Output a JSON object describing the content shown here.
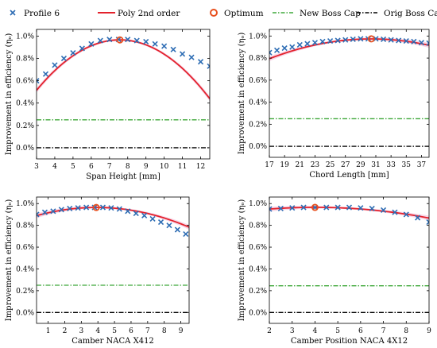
{
  "legend": {
    "placement": "top",
    "items": [
      {
        "label": "Profile 6",
        "marker": "x",
        "color": "#2e6db4"
      },
      {
        "label": "Poly 2nd order",
        "marker": "line",
        "color": "#e3222c"
      },
      {
        "label": "Optimum",
        "marker": "circle",
        "color": "#e8501e"
      },
      {
        "label": "New Boss Cap",
        "marker": "dashdot",
        "color": "#3fa83a"
      },
      {
        "label": "Orig Boss Cap",
        "marker": "dashdot",
        "color": "#000000"
      }
    ]
  },
  "colors": {
    "profile": "#2e6db4",
    "poly": "#e3222c",
    "confidence": "#f3b6d6",
    "optimum": "#e8501e",
    "new_boss_cap": "#3fa83a",
    "orig_boss_cap": "#000000"
  },
  "chart_data": [
    {
      "type": "scatter",
      "xlabel": "Span Height [mm]",
      "ylabel": "Improvement in efficiency (ηₒ)",
      "xlim": [
        3,
        12.5
      ],
      "ylim": [
        -0.1,
        1.06
      ],
      "xticks": [
        3,
        4,
        5,
        6,
        7,
        8,
        9,
        10,
        11,
        12
      ],
      "yticks": [
        0.0,
        0.2,
        0.4,
        0.6,
        0.8,
        1.0
      ],
      "ytick_labels": [
        "0.0%",
        "0.2%",
        "0.4%",
        "0.6%",
        "0.8%",
        "1.0%"
      ],
      "grid": false,
      "series": [
        {
          "name": "Profile 6",
          "kind": "markers",
          "x": [
            3.0,
            3.5,
            4.0,
            4.5,
            5.0,
            5.5,
            6.0,
            6.5,
            7.0,
            7.5,
            8.0,
            8.5,
            9.0,
            9.5,
            10.0,
            10.5,
            11.0,
            11.5,
            12.0,
            12.5
          ],
          "y": [
            0.6,
            0.66,
            0.74,
            0.8,
            0.85,
            0.89,
            0.93,
            0.96,
            0.97,
            0.97,
            0.97,
            0.96,
            0.95,
            0.93,
            0.91,
            0.88,
            0.84,
            0.81,
            0.77,
            0.73
          ]
        },
        {
          "name": "Poly 2nd order",
          "kind": "quadratic",
          "coefficients": [
            -0.27425,
            0.3279,
            -0.021667
          ]
        },
        {
          "name": "Optimum",
          "kind": "point",
          "x": [
            7.57
          ],
          "y": [
            0.966
          ]
        },
        {
          "name": "New Boss Cap",
          "kind": "hline",
          "y": 0.25
        },
        {
          "name": "Orig Boss Cap",
          "kind": "hline",
          "y": 0.0
        }
      ]
    },
    {
      "type": "scatter",
      "xlabel": "Chord Length [mm]",
      "ylabel": "Improvement in efficiency (ηₒ)",
      "xlim": [
        17,
        38
      ],
      "ylim": [
        -0.1,
        1.06
      ],
      "xticks": [
        17,
        19,
        21,
        23,
        25,
        27,
        29,
        31,
        33,
        35,
        37
      ],
      "yticks": [
        0.0,
        0.2,
        0.4,
        0.6,
        0.8,
        1.0
      ],
      "ytick_labels": [
        "0.0%",
        "0.2%",
        "0.4%",
        "0.6%",
        "0.8%",
        "1.0%"
      ],
      "grid": false,
      "series": [
        {
          "name": "Profile 6",
          "kind": "markers",
          "x": [
            17,
            18,
            19,
            20,
            21,
            22,
            23,
            24,
            25,
            26,
            27,
            28,
            29,
            30,
            31,
            32,
            33,
            34,
            35,
            36,
            37,
            38
          ],
          "y": [
            0.85,
            0.87,
            0.89,
            0.9,
            0.92,
            0.93,
            0.94,
            0.95,
            0.955,
            0.96,
            0.965,
            0.97,
            0.975,
            0.975,
            0.975,
            0.97,
            0.965,
            0.96,
            0.955,
            0.95,
            0.94,
            0.935
          ]
        },
        {
          "name": "Poly 2nd order",
          "kind": "quadratic",
          "coefficients": [
            0.04933,
            0.0608,
            -0.001
          ]
        },
        {
          "name": "Optimum",
          "kind": "point",
          "x": [
            30.4
          ],
          "y": [
            0.974
          ]
        },
        {
          "name": "New Boss Cap",
          "kind": "hline",
          "y": 0.25
        },
        {
          "name": "Orig Boss Cap",
          "kind": "hline",
          "y": 0.0
        }
      ]
    },
    {
      "type": "scatter",
      "xlabel": "Camber NACA X412",
      "ylabel": "Improvement in efficiency (ηₒ)",
      "xlim": [
        0.3,
        9.5
      ],
      "ylim": [
        -0.1,
        1.06
      ],
      "xticks": [
        1,
        2,
        3,
        4,
        5,
        6,
        7,
        8,
        9
      ],
      "yticks": [
        0.0,
        0.2,
        0.4,
        0.6,
        0.8,
        1.0
      ],
      "ytick_labels": [
        "0.0%",
        "0.2%",
        "0.4%",
        "0.6%",
        "0.8%",
        "1.0%"
      ],
      "grid": false,
      "series": [
        {
          "name": "Profile 6",
          "kind": "markers",
          "x": [
            0.3,
            0.8,
            1.3,
            1.8,
            2.3,
            2.8,
            3.3,
            3.8,
            4.3,
            4.8,
            5.3,
            5.8,
            6.3,
            6.8,
            7.3,
            7.8,
            8.3,
            8.8,
            9.3
          ],
          "y": [
            0.9,
            0.92,
            0.93,
            0.945,
            0.955,
            0.96,
            0.965,
            0.965,
            0.965,
            0.96,
            0.95,
            0.93,
            0.91,
            0.89,
            0.86,
            0.83,
            0.8,
            0.76,
            0.72
          ]
        },
        {
          "name": "Poly 2nd order",
          "kind": "quadratic",
          "coefficients": [
            0.8756,
            0.04544,
            -0.005807
          ]
        },
        {
          "name": "Optimum",
          "kind": "point",
          "x": [
            3.9
          ],
          "y": [
            0.964
          ]
        },
        {
          "name": "New Boss Cap",
          "kind": "hline",
          "y": 0.25
        },
        {
          "name": "Orig Boss Cap",
          "kind": "hline",
          "y": 0.0
        }
      ]
    },
    {
      "type": "scatter",
      "xlabel": "Camber Position NACA 4X12",
      "ylabel": "Improvement in efficiency (ηₒ)",
      "xlim": [
        2,
        9
      ],
      "ylim": [
        -0.1,
        1.06
      ],
      "xticks": [
        2,
        3,
        4,
        5,
        6,
        7,
        8,
        9
      ],
      "yticks": [
        0.0,
        0.2,
        0.4,
        0.6,
        0.8,
        1.0
      ],
      "ytick_labels": [
        "0.0%",
        "0.2%",
        "0.4%",
        "0.6%",
        "0.8%",
        "1.0%"
      ],
      "grid": false,
      "series": [
        {
          "name": "Profile 6",
          "kind": "markers",
          "x": [
            2.0,
            2.5,
            3.0,
            3.5,
            4.0,
            4.5,
            5.0,
            5.5,
            6.0,
            6.5,
            7.0,
            7.5,
            8.0,
            8.5,
            9.0
          ],
          "y": [
            0.95,
            0.955,
            0.96,
            0.965,
            0.965,
            0.965,
            0.965,
            0.965,
            0.96,
            0.955,
            0.94,
            0.92,
            0.9,
            0.87,
            0.83
          ]
        },
        {
          "name": "Poly 2nd order",
          "kind": "quadratic",
          "coefficients": [
            0.9015,
            0.0319,
            -0.00397
          ]
        },
        {
          "name": "Optimum",
          "kind": "point",
          "x": [
            4.0
          ],
          "y": [
            0.965
          ]
        },
        {
          "name": "New Boss Cap",
          "kind": "hline",
          "y": 0.245
        },
        {
          "name": "Orig Boss Cap",
          "kind": "hline",
          "y": 0.0
        }
      ]
    }
  ]
}
